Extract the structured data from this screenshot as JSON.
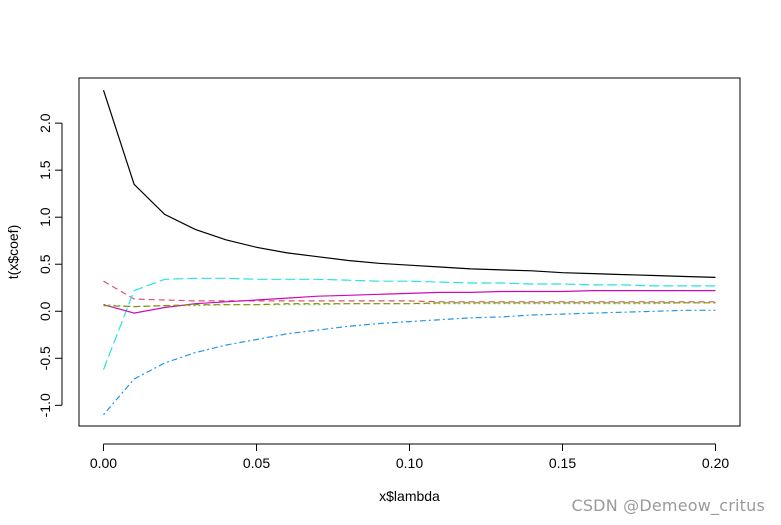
{
  "chart_data": {
    "type": "line",
    "title": "",
    "xlabel": "x$lambda",
    "ylabel": "t(x$coef)",
    "xlim": [
      -0.008,
      0.208
    ],
    "ylim": [
      -1.22,
      2.48
    ],
    "grid": false,
    "x_ticks": [
      0.0,
      0.05,
      0.1,
      0.15,
      0.2
    ],
    "x_tick_labels": [
      "0.00",
      "0.05",
      "0.10",
      "0.15",
      "0.20"
    ],
    "y_ticks": [
      -1.0,
      -0.5,
      0.0,
      0.5,
      1.0,
      1.5,
      2.0
    ],
    "y_tick_labels": [
      "-1.0",
      "-0.5",
      "0.0",
      "0.5",
      "1.0",
      "1.5",
      "2.0"
    ],
    "x": [
      0.0,
      0.01,
      0.02,
      0.03,
      0.04,
      0.05,
      0.06,
      0.07,
      0.08,
      0.09,
      0.1,
      0.11,
      0.12,
      0.13,
      0.14,
      0.15,
      0.16,
      0.17,
      0.18,
      0.19,
      0.2
    ],
    "series": [
      {
        "color": "#000000",
        "dash": "solid",
        "values": [
          2.35,
          1.35,
          1.03,
          0.87,
          0.76,
          0.68,
          0.62,
          0.58,
          0.54,
          0.51,
          0.49,
          0.47,
          0.45,
          0.44,
          0.43,
          0.41,
          0.4,
          0.39,
          0.38,
          0.37,
          0.36
        ]
      },
      {
        "color": "#DF536B",
        "dash": "dashed",
        "values": [
          0.32,
          0.13,
          0.12,
          0.11,
          0.11,
          0.11,
          0.11,
          0.11,
          0.11,
          0.11,
          0.11,
          0.1,
          0.1,
          0.1,
          0.1,
          0.1,
          0.1,
          0.1,
          0.1,
          0.1,
          0.1
        ]
      },
      {
        "color": "#61D04F",
        "dash": "dotted",
        "values": [
          0.07,
          0.05,
          0.06,
          0.06,
          0.07,
          0.07,
          0.07,
          0.07,
          0.08,
          0.08,
          0.08,
          0.08,
          0.08,
          0.08,
          0.08,
          0.08,
          0.08,
          0.08,
          0.08,
          0.09,
          0.09
        ]
      },
      {
        "color": "#2297E6",
        "dash": "dotdash",
        "values": [
          -1.1,
          -0.72,
          -0.55,
          -0.44,
          -0.36,
          -0.3,
          -0.24,
          -0.2,
          -0.16,
          -0.13,
          -0.11,
          -0.09,
          -0.07,
          -0.06,
          -0.04,
          -0.03,
          -0.02,
          -0.01,
          0.0,
          0.01,
          0.01
        ]
      },
      {
        "color": "#28E2E5",
        "dash": "longdash",
        "values": [
          -0.62,
          0.22,
          0.34,
          0.35,
          0.35,
          0.34,
          0.34,
          0.34,
          0.33,
          0.32,
          0.32,
          0.31,
          0.3,
          0.3,
          0.29,
          0.29,
          0.28,
          0.28,
          0.27,
          0.27,
          0.27
        ]
      },
      {
        "color": "#CD0BBC",
        "dash": "solid",
        "values": [
          0.07,
          -0.02,
          0.04,
          0.08,
          0.1,
          0.12,
          0.14,
          0.16,
          0.17,
          0.18,
          0.19,
          0.2,
          0.2,
          0.21,
          0.21,
          0.21,
          0.22,
          0.22,
          0.22,
          0.22,
          0.22
        ]
      },
      {
        "color": "#8B8B00",
        "dash": "dashed",
        "values": [
          0.06,
          0.05,
          0.06,
          0.07,
          0.07,
          0.07,
          0.08,
          0.08,
          0.08,
          0.08,
          0.08,
          0.09,
          0.09,
          0.09,
          0.09,
          0.09,
          0.09,
          0.09,
          0.09,
          0.09,
          0.09
        ]
      }
    ]
  },
  "watermark": "CSDN @Demeow_critus"
}
